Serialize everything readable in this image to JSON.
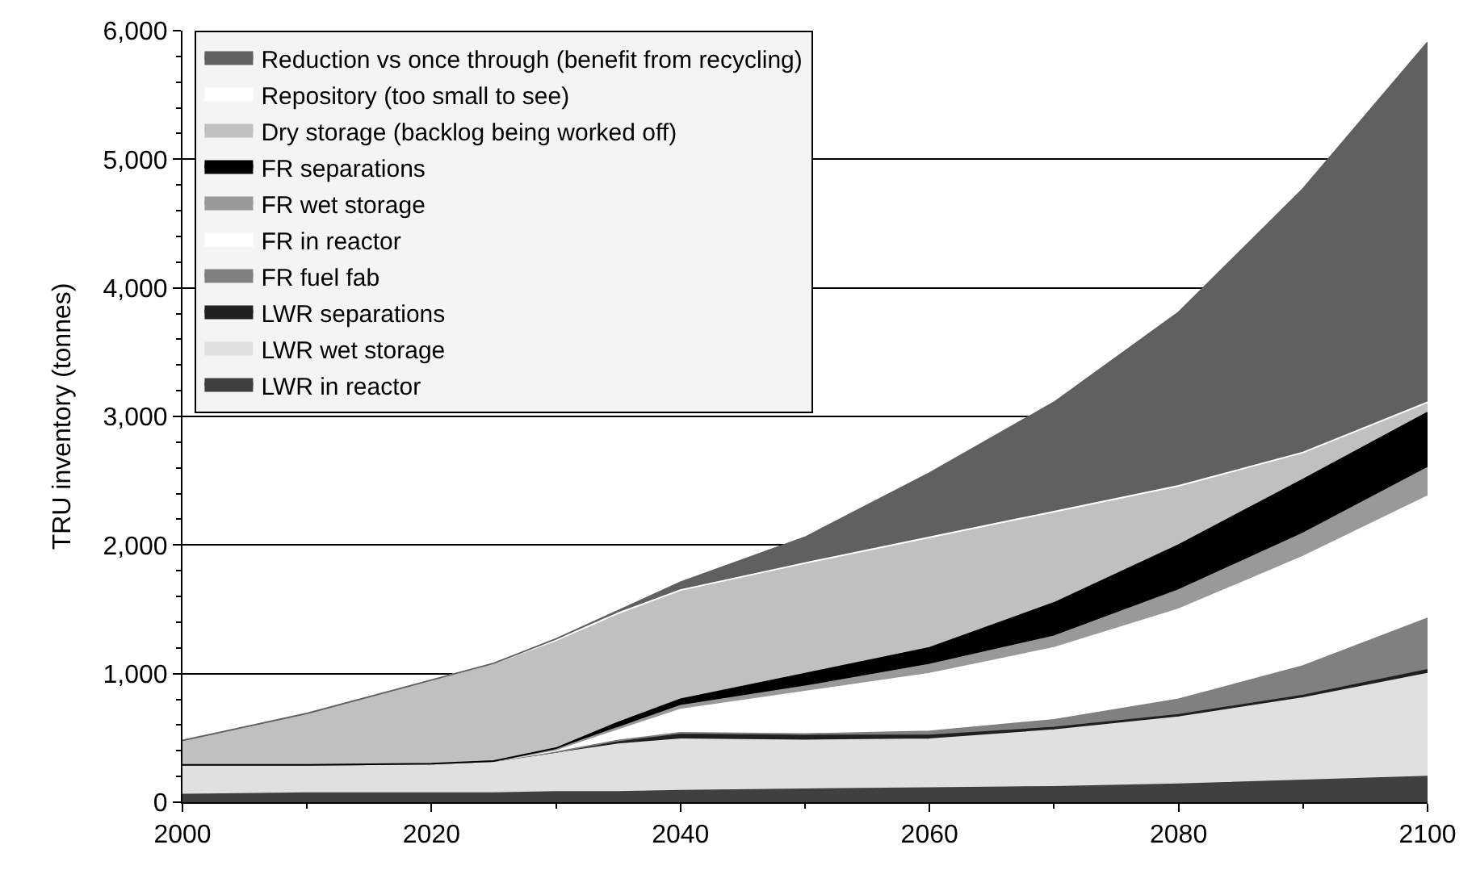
{
  "chart_data": {
    "type": "area",
    "stacked": true,
    "ylabel": "TRU inventory (tonnes)",
    "x": [
      2000,
      2010,
      2020,
      2025,
      2030,
      2035,
      2040,
      2050,
      2060,
      2070,
      2080,
      2090,
      2100
    ],
    "xlim": [
      2000,
      2100
    ],
    "xticks": [
      2000,
      2020,
      2040,
      2060,
      2080,
      2100
    ],
    "ylim": [
      0,
      6000
    ],
    "yticks": [
      0,
      {
        "value": 1000,
        "label": "1,000"
      },
      {
        "value": 2000,
        "label": "2,000"
      },
      {
        "value": 3000,
        "label": "3,000"
      },
      {
        "value": 4000,
        "label": "4,000"
      },
      {
        "value": 5000,
        "label": "5,000"
      },
      {
        "value": 6000,
        "label": "6,000"
      }
    ],
    "grid": "y",
    "legend": "top left",
    "series": [
      {
        "name": "LWR in reactor",
        "color": "#404040",
        "values": [
          60,
          70,
          70,
          70,
          80,
          80,
          90,
          100,
          110,
          120,
          140,
          170,
          200
        ]
      },
      {
        "name": "LWR wet storage",
        "color": "#e0e0e0",
        "values": [
          230,
          220,
          230,
          250,
          300,
          370,
          400,
          380,
          380,
          440,
          520,
          640,
          800
        ]
      },
      {
        "name": "LWR separations",
        "color": "#202020",
        "values": [
          0,
          0,
          0,
          0,
          10,
          30,
          40,
          40,
          30,
          20,
          20,
          20,
          30
        ]
      },
      {
        "name": "FR fuel fab",
        "color": "#808080",
        "values": [
          0,
          0,
          0,
          0,
          0,
          0,
          10,
          10,
          30,
          60,
          120,
          230,
          400
        ]
      },
      {
        "name": "FR in reactor",
        "color": "#ffffff",
        "values": [
          0,
          0,
          0,
          0,
          10,
          80,
          180,
          330,
          450,
          560,
          700,
          850,
          950
        ]
      },
      {
        "name": "FR wet storage",
        "color": "#999999",
        "values": [
          0,
          0,
          0,
          0,
          10,
          20,
          30,
          40,
          70,
          90,
          150,
          180,
          220
        ]
      },
      {
        "name": "FR separations",
        "color": "#000000",
        "values": [
          0,
          0,
          0,
          0,
          10,
          40,
          50,
          100,
          130,
          260,
          350,
          420,
          430
        ]
      },
      {
        "name": "Dry storage (backlog being worked off)",
        "color": "#c0c0c0",
        "values": [
          190,
          400,
          650,
          760,
          840,
          850,
          840,
          850,
          850,
          700,
          450,
          200,
          70
        ]
      },
      {
        "name": "Repository (too small to see)",
        "color": "#ffffff",
        "values": [
          0,
          0,
          0,
          0,
          0,
          0,
          10,
          10,
          10,
          10,
          10,
          10,
          10
        ]
      },
      {
        "name": "Reduction vs once through (benefit from recycling)",
        "color": "#606060",
        "values": [
          0,
          0,
          0,
          0,
          10,
          20,
          60,
          200,
          500,
          850,
          1350,
          2050,
          2800
        ]
      }
    ]
  }
}
